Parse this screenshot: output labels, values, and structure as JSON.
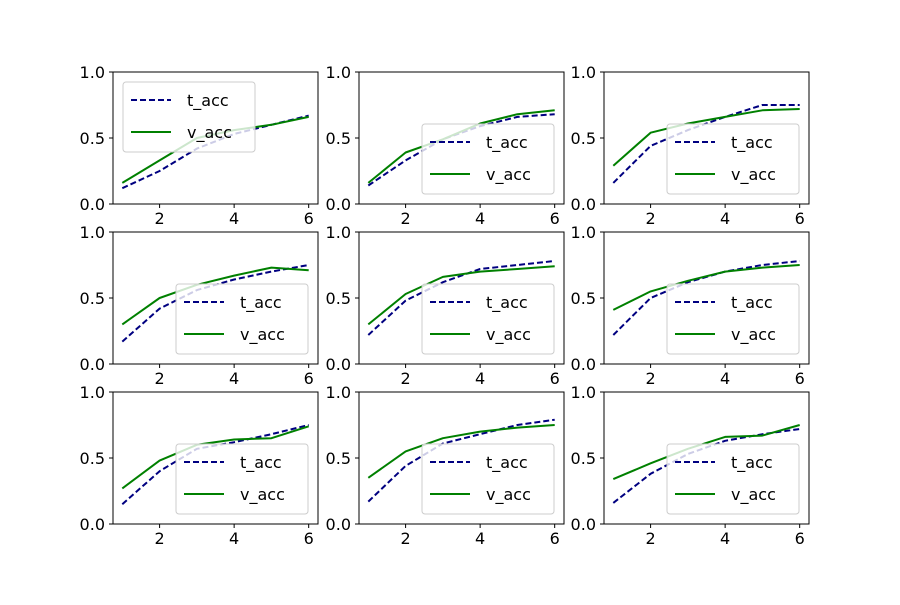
{
  "colors": {
    "t_acc": "#000080",
    "v_acc": "#008000",
    "axes": "#000000",
    "legend_border": "#cccccc",
    "background": "#ffffff"
  },
  "chart_data": [
    {
      "type": "line",
      "x": [
        1,
        2,
        3,
        4,
        5,
        6
      ],
      "xticks": [
        "2",
        "4",
        "6"
      ],
      "yticks": [
        "0.0",
        "0.5",
        "1.0"
      ],
      "ylim": [
        0,
        1
      ],
      "legend_position": "upper-left",
      "series": [
        {
          "name": "t_acc",
          "style": "dashed",
          "values": [
            0.12,
            0.25,
            0.42,
            0.53,
            0.6,
            0.67
          ]
        },
        {
          "name": "v_acc",
          "style": "solid",
          "values": [
            0.16,
            0.33,
            0.5,
            0.56,
            0.6,
            0.66
          ]
        }
      ]
    },
    {
      "type": "line",
      "x": [
        1,
        2,
        3,
        4,
        5,
        6
      ],
      "xticks": [
        "2",
        "4",
        "6"
      ],
      "yticks": [
        "0.0",
        "0.5",
        "1.0"
      ],
      "ylim": [
        0,
        1
      ],
      "legend_position": "lower-right",
      "series": [
        {
          "name": "t_acc",
          "style": "dashed",
          "values": [
            0.14,
            0.33,
            0.49,
            0.59,
            0.66,
            0.68
          ]
        },
        {
          "name": "v_acc",
          "style": "solid",
          "values": [
            0.16,
            0.39,
            0.49,
            0.61,
            0.68,
            0.71
          ]
        }
      ]
    },
    {
      "type": "line",
      "x": [
        1,
        2,
        3,
        4,
        5,
        6
      ],
      "xticks": [
        "2",
        "4",
        "6"
      ],
      "yticks": [
        "0.0",
        "0.5",
        "1.0"
      ],
      "ylim": [
        0,
        1
      ],
      "legend_position": "lower-right",
      "series": [
        {
          "name": "t_acc",
          "style": "dashed",
          "values": [
            0.16,
            0.44,
            0.56,
            0.66,
            0.75,
            0.75
          ]
        },
        {
          "name": "v_acc",
          "style": "solid",
          "values": [
            0.29,
            0.54,
            0.61,
            0.66,
            0.71,
            0.72
          ]
        }
      ]
    },
    {
      "type": "line",
      "x": [
        1,
        2,
        3,
        4,
        5,
        6
      ],
      "xticks": [
        "2",
        "4",
        "6"
      ],
      "yticks": [
        "0.0",
        "0.5",
        "1.0"
      ],
      "ylim": [
        0,
        1
      ],
      "legend_position": "lower-right",
      "series": [
        {
          "name": "t_acc",
          "style": "dashed",
          "values": [
            0.17,
            0.42,
            0.56,
            0.64,
            0.7,
            0.75
          ]
        },
        {
          "name": "v_acc",
          "style": "solid",
          "values": [
            0.3,
            0.5,
            0.6,
            0.67,
            0.73,
            0.71
          ]
        }
      ]
    },
    {
      "type": "line",
      "x": [
        1,
        2,
        3,
        4,
        5,
        6
      ],
      "xticks": [
        "2",
        "4",
        "6"
      ],
      "yticks": [
        "0.0",
        "0.5",
        "1.0"
      ],
      "ylim": [
        0,
        1
      ],
      "legend_position": "lower-right",
      "series": [
        {
          "name": "t_acc",
          "style": "dashed",
          "values": [
            0.22,
            0.48,
            0.62,
            0.72,
            0.75,
            0.78
          ]
        },
        {
          "name": "v_acc",
          "style": "solid",
          "values": [
            0.3,
            0.53,
            0.66,
            0.7,
            0.72,
            0.74
          ]
        }
      ]
    },
    {
      "type": "line",
      "x": [
        1,
        2,
        3,
        4,
        5,
        6
      ],
      "xticks": [
        "2",
        "4",
        "6"
      ],
      "yticks": [
        "0.0",
        "0.5",
        "1.0"
      ],
      "ylim": [
        0,
        1
      ],
      "legend_position": "lower-right",
      "series": [
        {
          "name": "t_acc",
          "style": "dashed",
          "values": [
            0.22,
            0.5,
            0.62,
            0.7,
            0.75,
            0.78
          ]
        },
        {
          "name": "v_acc",
          "style": "solid",
          "values": [
            0.41,
            0.55,
            0.63,
            0.7,
            0.73,
            0.75
          ]
        }
      ]
    },
    {
      "type": "line",
      "x": [
        1,
        2,
        3,
        4,
        5,
        6
      ],
      "xticks": [
        "2",
        "4",
        "6"
      ],
      "yticks": [
        "0.0",
        "0.5",
        "1.0"
      ],
      "ylim": [
        0,
        1
      ],
      "legend_position": "lower-right",
      "series": [
        {
          "name": "t_acc",
          "style": "dashed",
          "values": [
            0.15,
            0.4,
            0.57,
            0.62,
            0.68,
            0.75
          ]
        },
        {
          "name": "v_acc",
          "style": "solid",
          "values": [
            0.27,
            0.48,
            0.6,
            0.64,
            0.65,
            0.74
          ]
        }
      ]
    },
    {
      "type": "line",
      "x": [
        1,
        2,
        3,
        4,
        5,
        6
      ],
      "xticks": [
        "2",
        "4",
        "6"
      ],
      "yticks": [
        "0.0",
        "0.5",
        "1.0"
      ],
      "ylim": [
        0,
        1
      ],
      "legend_position": "lower-right",
      "series": [
        {
          "name": "t_acc",
          "style": "dashed",
          "values": [
            0.17,
            0.44,
            0.61,
            0.68,
            0.75,
            0.79
          ]
        },
        {
          "name": "v_acc",
          "style": "solid",
          "values": [
            0.35,
            0.55,
            0.65,
            0.7,
            0.73,
            0.75
          ]
        }
      ]
    },
    {
      "type": "line",
      "x": [
        1,
        2,
        3,
        4,
        5,
        6
      ],
      "xticks": [
        "2",
        "4",
        "6"
      ],
      "yticks": [
        "0.0",
        "0.5",
        "1.0"
      ],
      "ylim": [
        0,
        1
      ],
      "legend_position": "lower-right",
      "series": [
        {
          "name": "t_acc",
          "style": "dashed",
          "values": [
            0.16,
            0.38,
            0.53,
            0.63,
            0.68,
            0.72
          ]
        },
        {
          "name": "v_acc",
          "style": "solid",
          "values": [
            0.34,
            0.46,
            0.57,
            0.66,
            0.67,
            0.75
          ]
        }
      ]
    }
  ]
}
